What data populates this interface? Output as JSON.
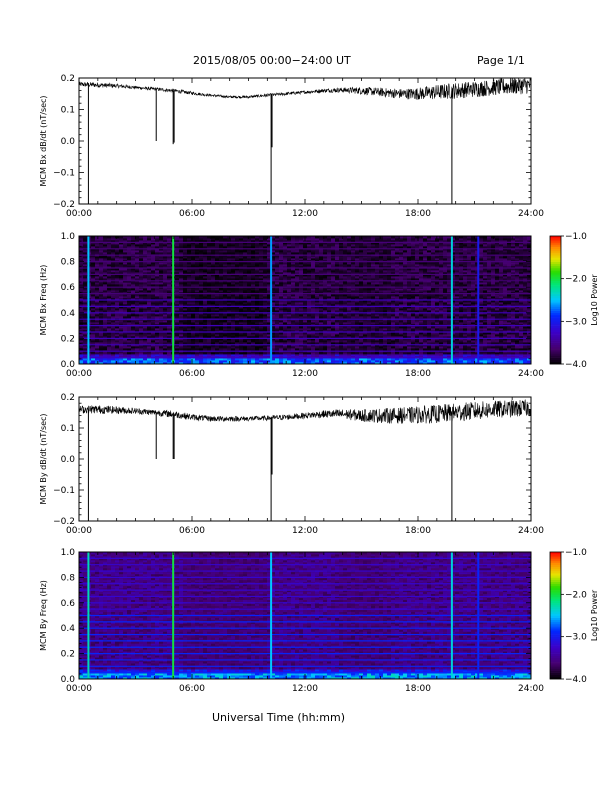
{
  "header": {
    "title": "2015/08/05  00:00−24:00 UT",
    "page": "Page 1/1"
  },
  "footer": {
    "xlabel": "Universal Time (hh:mm)"
  },
  "chart_data": [
    {
      "type": "line",
      "ylabel": "MCM Bx dB/dt (nT/sec)",
      "xlim_hours": [
        0,
        24
      ],
      "ylim": [
        -0.2,
        0.2
      ],
      "x_ticks": [
        "00:00",
        "06:00",
        "12:00",
        "18:00",
        "24:00"
      ],
      "y_ticks": [
        "0.2",
        "0.1",
        "0.0",
        "−0.1",
        "−0.2"
      ],
      "y_tick_values": [
        0.2,
        0.1,
        0.0,
        -0.1,
        -0.2
      ],
      "baseline": {
        "x": [
          0,
          1,
          2,
          3,
          4,
          5,
          6,
          7,
          8,
          9,
          10,
          11,
          12,
          13,
          14,
          15,
          16,
          17,
          18,
          19,
          20,
          21,
          22,
          23,
          24
        ],
        "y": [
          0.18,
          0.178,
          0.175,
          0.17,
          0.165,
          0.16,
          0.152,
          0.145,
          0.14,
          0.14,
          0.145,
          0.15,
          0.155,
          0.16,
          0.162,
          0.16,
          0.155,
          0.15,
          0.15,
          0.155,
          0.16,
          0.165,
          0.17,
          0.175,
          0.178
        ],
        "noise": [
          0.008,
          0.008,
          0.006,
          0.005,
          0.005,
          0.006,
          0.005,
          0.004,
          0.004,
          0.004,
          0.005,
          0.005,
          0.005,
          0.006,
          0.008,
          0.012,
          0.014,
          0.016,
          0.02,
          0.024,
          0.026,
          0.026,
          0.026,
          0.028,
          0.028
        ]
      },
      "spikes": [
        {
          "t": 0.5,
          "min": -0.2
        },
        {
          "t": 4.1,
          "min": 0.0
        },
        {
          "t": 5.0,
          "min": -0.01
        },
        {
          "t": 5.05,
          "min": -0.005
        },
        {
          "t": 10.2,
          "min": -0.2
        },
        {
          "t": 10.25,
          "min": -0.02
        },
        {
          "t": 19.8,
          "min": -0.2
        }
      ]
    },
    {
      "type": "heatmap",
      "ylabel": "MCM Bx Freq (Hz)",
      "colorbar_label": "Log10 Power",
      "xlim_hours": [
        0,
        24
      ],
      "ylim": [
        0,
        1.0
      ],
      "x_ticks": [
        "00:00",
        "06:00",
        "12:00",
        "18:00",
        "24:00"
      ],
      "y_ticks": [
        "1.0",
        "0.8",
        "0.6",
        "0.4",
        "0.2",
        "0.0"
      ],
      "y_tick_values": [
        1.0,
        0.8,
        0.6,
        0.4,
        0.2,
        0.0
      ],
      "colorbar_range": [
        -4.0,
        -1.0
      ],
      "colorbar_ticks": [
        "−1.0",
        "−2.0",
        "−3.0",
        "−4.0"
      ],
      "colorbar_tick_values": [
        -1.0,
        -2.0,
        -3.0,
        -4.0
      ],
      "harmonic_spacing_hz": 0.05,
      "background_level": -3.8,
      "harmonic_level": -3.3,
      "low_freq_level": -2.8,
      "vertical_events": [
        {
          "t": 0.5,
          "level": -2.5
        },
        {
          "t": 5.0,
          "level": -2.0
        },
        {
          "t": 10.2,
          "level": -2.6
        },
        {
          "t": 19.8,
          "level": -2.4
        },
        {
          "t": 21.2,
          "level": -3.0
        }
      ],
      "dark_patches": [
        {
          "t0": 5.5,
          "t1": 10.0,
          "level": -4.0
        },
        {
          "t0": 13.8,
          "t1": 16.5,
          "level": -3.9
        }
      ]
    },
    {
      "type": "line",
      "ylabel": "MCM By dB/dt (nT/sec)",
      "xlim_hours": [
        0,
        24
      ],
      "ylim": [
        -0.2,
        0.2
      ],
      "x_ticks": [
        "00:00",
        "06:00",
        "12:00",
        "18:00",
        "24:00"
      ],
      "y_ticks": [
        "0.2",
        "0.1",
        "0.0",
        "−0.1",
        "−0.2"
      ],
      "y_tick_values": [
        0.2,
        0.1,
        0.0,
        -0.1,
        -0.2
      ],
      "baseline": {
        "x": [
          0,
          1,
          2,
          3,
          4,
          5,
          6,
          7,
          8,
          9,
          10,
          11,
          12,
          13,
          14,
          15,
          16,
          17,
          18,
          19,
          20,
          21,
          22,
          23,
          24
        ],
        "y": [
          0.16,
          0.16,
          0.158,
          0.155,
          0.15,
          0.145,
          0.135,
          0.13,
          0.13,
          0.13,
          0.132,
          0.135,
          0.14,
          0.145,
          0.145,
          0.14,
          0.14,
          0.14,
          0.142,
          0.145,
          0.15,
          0.155,
          0.16,
          0.162,
          0.165
        ],
        "noise": [
          0.012,
          0.014,
          0.012,
          0.01,
          0.01,
          0.012,
          0.01,
          0.009,
          0.009,
          0.008,
          0.008,
          0.009,
          0.01,
          0.012,
          0.016,
          0.02,
          0.024,
          0.026,
          0.028,
          0.03,
          0.03,
          0.03,
          0.028,
          0.028,
          0.028
        ]
      },
      "spikes": [
        {
          "t": 0.5,
          "min": -0.2
        },
        {
          "t": 4.1,
          "min": 0.0
        },
        {
          "t": 5.0,
          "min": 0.0
        },
        {
          "t": 5.05,
          "min": 0.0
        },
        {
          "t": 10.2,
          "min": -0.2
        },
        {
          "t": 10.25,
          "min": -0.05
        },
        {
          "t": 19.8,
          "min": -0.2
        }
      ]
    },
    {
      "type": "heatmap",
      "ylabel": "MCM By Freq (Hz)",
      "colorbar_label": "Log10 Power",
      "xlim_hours": [
        0,
        24
      ],
      "ylim": [
        0,
        1.0
      ],
      "x_ticks": [
        "00:00",
        "06:00",
        "12:00",
        "18:00",
        "24:00"
      ],
      "y_ticks": [
        "1.0",
        "0.8",
        "0.6",
        "0.4",
        "0.2",
        "0.0"
      ],
      "y_tick_values": [
        1.0,
        0.8,
        0.6,
        0.4,
        0.2,
        0.0
      ],
      "colorbar_range": [
        -4.0,
        -1.0
      ],
      "colorbar_ticks": [
        "−1.0",
        "−2.0",
        "−3.0",
        "−4.0"
      ],
      "colorbar_tick_values": [
        -1.0,
        -2.0,
        -3.0,
        -4.0
      ],
      "harmonic_spacing_hz": 0.05,
      "background_level": -3.55,
      "harmonic_level": -2.9,
      "low_freq_level": -2.6,
      "vertical_events": [
        {
          "t": 0.5,
          "level": -2.3
        },
        {
          "t": 5.0,
          "level": -2.0
        },
        {
          "t": 10.2,
          "level": -2.5
        },
        {
          "t": 19.8,
          "level": -2.4
        },
        {
          "t": 21.2,
          "level": -2.9
        }
      ],
      "dark_patches": [
        {
          "t0": 5.5,
          "t1": 10.0,
          "level": -3.7
        },
        {
          "t0": 13.8,
          "t1": 16.5,
          "level": -3.7
        }
      ]
    }
  ]
}
